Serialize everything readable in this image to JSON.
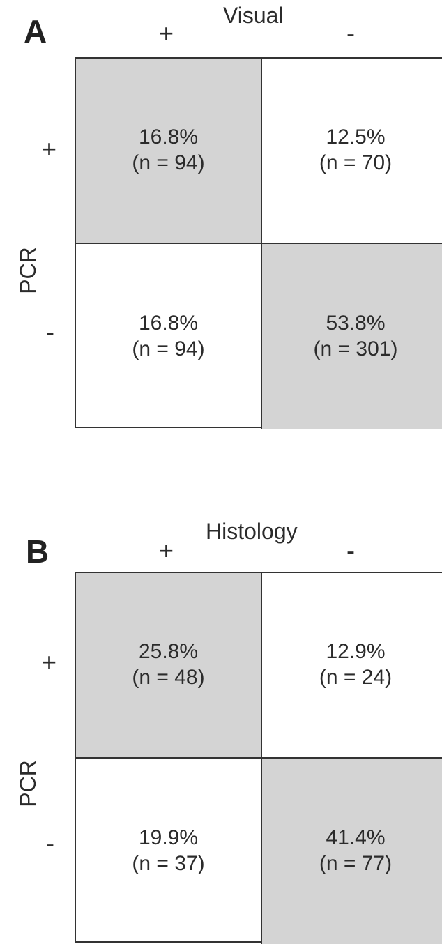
{
  "chart_data": [
    {
      "type": "table",
      "panel": "A",
      "title": "Visual",
      "ylabel": "PCR",
      "columns": [
        "+",
        "-"
      ],
      "rows": [
        "+",
        "-"
      ],
      "cells": [
        [
          {
            "percent": "16.8%",
            "n": "(n = 94)",
            "shaded": true
          },
          {
            "percent": "12.5%",
            "n": "(n = 70)",
            "shaded": false
          }
        ],
        [
          {
            "percent": "16.8%",
            "n": "(n = 94)",
            "shaded": false
          },
          {
            "percent": "53.8%",
            "n": "(n = 301)",
            "shaded": true
          }
        ]
      ]
    },
    {
      "type": "table",
      "panel": "B",
      "title": "Histology",
      "ylabel": "PCR",
      "columns": [
        "+",
        "-"
      ],
      "rows": [
        "+",
        "-"
      ],
      "cells": [
        [
          {
            "percent": "25.8%",
            "n": "(n = 48)",
            "shaded": true
          },
          {
            "percent": "12.9%",
            "n": "(n = 24)",
            "shaded": false
          }
        ],
        [
          {
            "percent": "19.9%",
            "n": "(n = 37)",
            "shaded": false
          },
          {
            "percent": "41.4%",
            "n": "(n = 77)",
            "shaded": true
          }
        ]
      ]
    }
  ],
  "colors": {
    "shaded": "#d4d4d4",
    "border": "#333333",
    "text": "#2b2b2b"
  }
}
